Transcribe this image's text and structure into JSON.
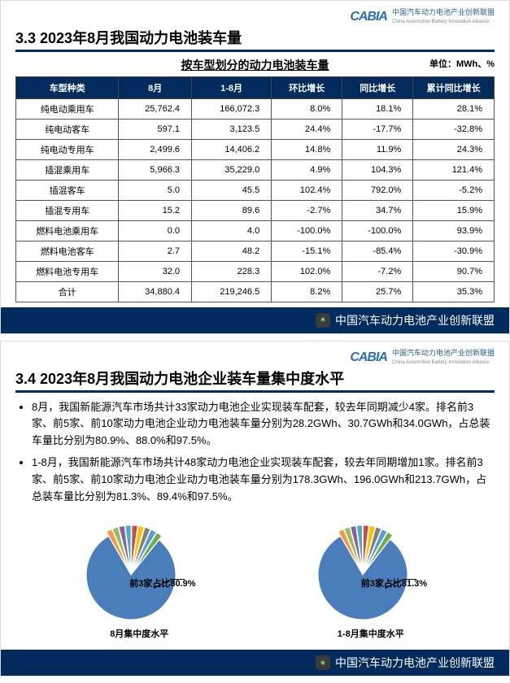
{
  "brand": {
    "mark": "CABIA",
    "cn": "中国汽车动力电池产业创新联盟",
    "en": "China Automotive Battery Innovation Alliance"
  },
  "footer_text": "中国汽车动力电池产业创新联盟",
  "slide1": {
    "section_title": "3.3 2023年8月我国动力电池装车量",
    "table_title": "按车型划分的动力电池装车量",
    "unit": "单位：MWh、%",
    "columns": [
      "车型种类",
      "8月",
      "1-8月",
      "环比增长",
      "同比增长",
      "累计同比增长"
    ],
    "rows": [
      [
        "纯电动乘用车",
        "25,762.4",
        "166,072.3",
        "8.0%",
        "18.1%",
        "28.1%"
      ],
      [
        "纯电动客车",
        "597.1",
        "3,123.5",
        "24.4%",
        "-17.7%",
        "-32.8%"
      ],
      [
        "纯电动专用车",
        "2,499.6",
        "14,406.2",
        "14.8%",
        "11.9%",
        "24.3%"
      ],
      [
        "插混乘用车",
        "5,966.3",
        "35,229.0",
        "4.9%",
        "104.3%",
        "121.4%"
      ],
      [
        "插混客车",
        "5.0",
        "45.5",
        "102.4%",
        "792.0%",
        "-5.2%"
      ],
      [
        "插混专用车",
        "15.2",
        "89.6",
        "-2.7%",
        "34.7%",
        "15.9%"
      ],
      [
        "燃料电池乘用车",
        "0.0",
        "4.0",
        "-100.0%",
        "-100.0%",
        "93.9%"
      ],
      [
        "燃料电池客车",
        "2.7",
        "48.2",
        "-15.1%",
        "-85.4%",
        "-30.9%"
      ],
      [
        "燃料电池专用车",
        "32.0",
        "228.3",
        "102.0%",
        "-7.2%",
        "90.7%"
      ],
      [
        "合计",
        "34,880.4",
        "219,246.5",
        "8.2%",
        "25.7%",
        "35.3%"
      ]
    ]
  },
  "slide2": {
    "section_title": "3.4 2023年8月我国动力电池企业装车量集中度水平",
    "bullets": [
      "8月，我国新能源汽车市场共计33家动力电池企业实现装车配套，较去年同期减少4家。排名前3家、前5家、前10家动力电池企业动力电池装车量分别为28.2GWh、30.7GWh和34.0GWh，占总装车量比分别为80.9%、88.0%和97.5%。",
      "1-8月，我国新能源汽车市场共计48家动力电池企业实现装车配套，较去年同期增加1家。排名前3家、前5家、前10家动力电池企业动力电池装车量分别为178.3GWh、196.0GWh和213.7GWh，占总装车量比分别为81.3%、89.4%和97.5%。"
    ],
    "chart_colors": {
      "dominant": "#4a7ebb",
      "slices": [
        "#f79646",
        "#9bbb59",
        "#8064a2",
        "#4bacc6",
        "#c0504d",
        "#ffc000",
        "#7f7f7f",
        "#5a9bd5",
        "#70ad47"
      ]
    },
    "chart_left": {
      "caption": "8月集中度水平",
      "label": "前3家占比80.9%",
      "dominant_pct": 80.9
    },
    "chart_right": {
      "caption": "1-8月集中度水平",
      "label": "前3家占比81.3%",
      "dominant_pct": 81.3
    }
  }
}
